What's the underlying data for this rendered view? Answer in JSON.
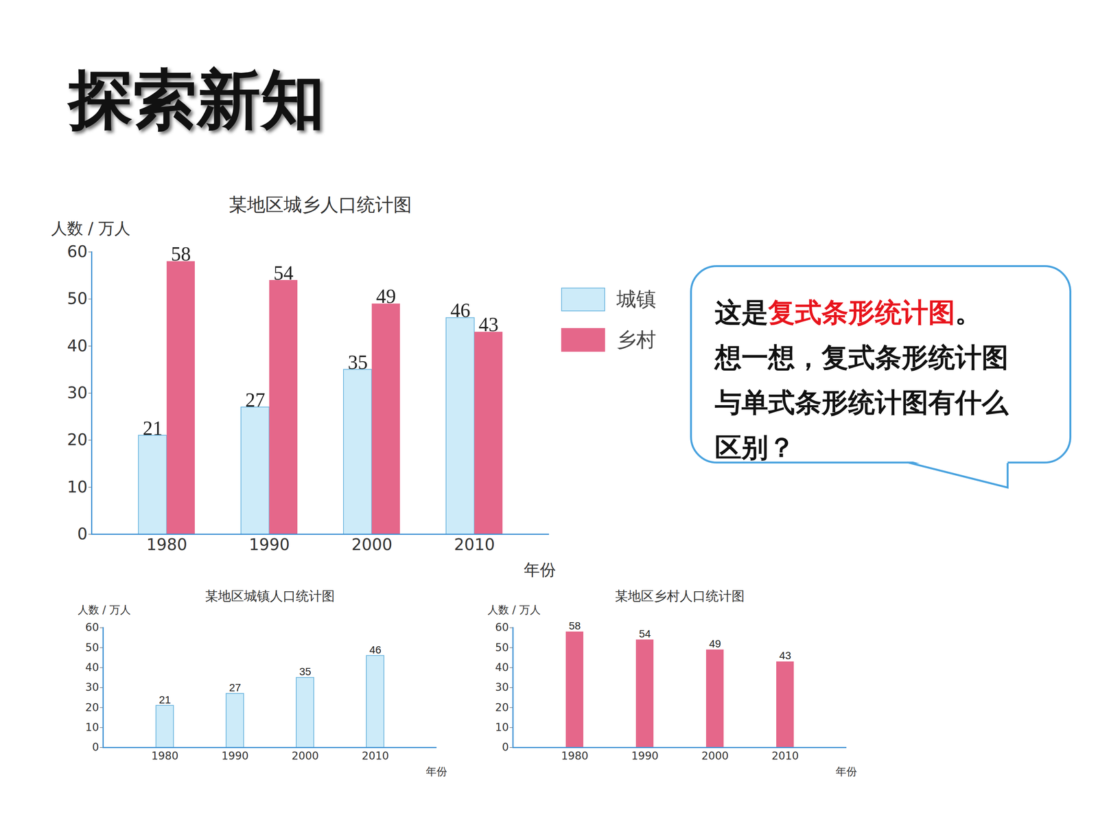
{
  "slide_title": "探索新知",
  "bubble": {
    "lines": [
      [
        {
          "text": "这是"
        },
        {
          "text": "复式条形统计图",
          "color": "#e8141c"
        },
        {
          "text": "。"
        }
      ],
      [
        {
          "text": "想一想，复式条形统计图与单式条形统计图有什么区别？"
        }
      ]
    ]
  },
  "chart_data": [
    {
      "type": "bar",
      "title": "某地区城乡人口统计图",
      "y_label": "人数 / 万人",
      "x_label": "年份",
      "categories": [
        "1980",
        "1990",
        "2000",
        "2010"
      ],
      "series": [
        {
          "name": "城镇",
          "color": "#cdebf9",
          "values": [
            21,
            27,
            35,
            46
          ]
        },
        {
          "name": "乡村",
          "color": "#e5678a",
          "values": [
            58,
            54,
            49,
            43
          ]
        }
      ],
      "ylim": [
        0,
        60
      ],
      "yticks": [
        0,
        10,
        20,
        30,
        40,
        50,
        60
      ],
      "data_labels": true,
      "legend": "right"
    },
    {
      "type": "bar",
      "title": "某地区城镇人口统计图",
      "y_label": "人数 / 万人",
      "x_label": "年份",
      "categories": [
        "1980",
        "1990",
        "2000",
        "2010"
      ],
      "values": [
        21,
        27,
        35,
        46
      ],
      "color": "#cdebf9",
      "ylim": [
        0,
        60
      ],
      "yticks": [
        0,
        10,
        20,
        30,
        40,
        50,
        60
      ],
      "data_labels": true
    },
    {
      "type": "bar",
      "title": "某地区乡村人口统计图",
      "y_label": "人数 / 万人",
      "x_label": "年份",
      "categories": [
        "1980",
        "1990",
        "2000",
        "2010"
      ],
      "values": [
        58,
        54,
        49,
        43
      ],
      "color": "#e5678a",
      "ylim": [
        0,
        60
      ],
      "yticks": [
        0,
        10,
        20,
        30,
        40,
        50,
        60
      ],
      "data_labels": true
    }
  ]
}
